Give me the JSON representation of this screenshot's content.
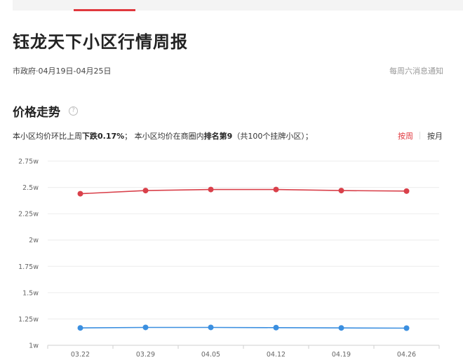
{
  "header": {
    "title": "钰龙天下小区行情周报"
  },
  "meta": {
    "location_dates": "市政府·04月19日-04月25日",
    "notice": "每周六消息通知"
  },
  "section": {
    "title": "价格走势",
    "help_icon": "question-circle-icon"
  },
  "summary": {
    "text1": "本小区均价环比上周",
    "change": "下跌0.17%",
    "text2": "； 本小区均价在商圈内",
    "rank": "排名第9",
    "text3": "（共100个挂牌小区）；"
  },
  "toggle": {
    "week": "按周",
    "month": "按月"
  },
  "colors": {
    "accent": "#e0383e",
    "series_red": "#d9404a",
    "series_blue": "#3b8fe0"
  },
  "chart_data": {
    "type": "line",
    "x": [
      "03.22",
      "03.29",
      "04.05",
      "04.12",
      "04.19",
      "04.26"
    ],
    "ylim": [
      1,
      2.75
    ],
    "yticks": [
      1,
      1.25,
      1.5,
      1.75,
      2,
      2.25,
      2.5,
      2.75
    ],
    "ytick_labels": [
      "1w",
      "1.25w",
      "1.5w",
      "1.75w",
      "2w",
      "2.25w",
      "2.5w",
      "2.75w"
    ],
    "grid": true,
    "series": [
      {
        "values": [
          2.44,
          2.47,
          2.48,
          2.48,
          2.47,
          2.465
        ]
      },
      {
        "values": [
          1.165,
          1.17,
          1.17,
          1.168,
          1.165,
          1.163
        ]
      }
    ]
  }
}
